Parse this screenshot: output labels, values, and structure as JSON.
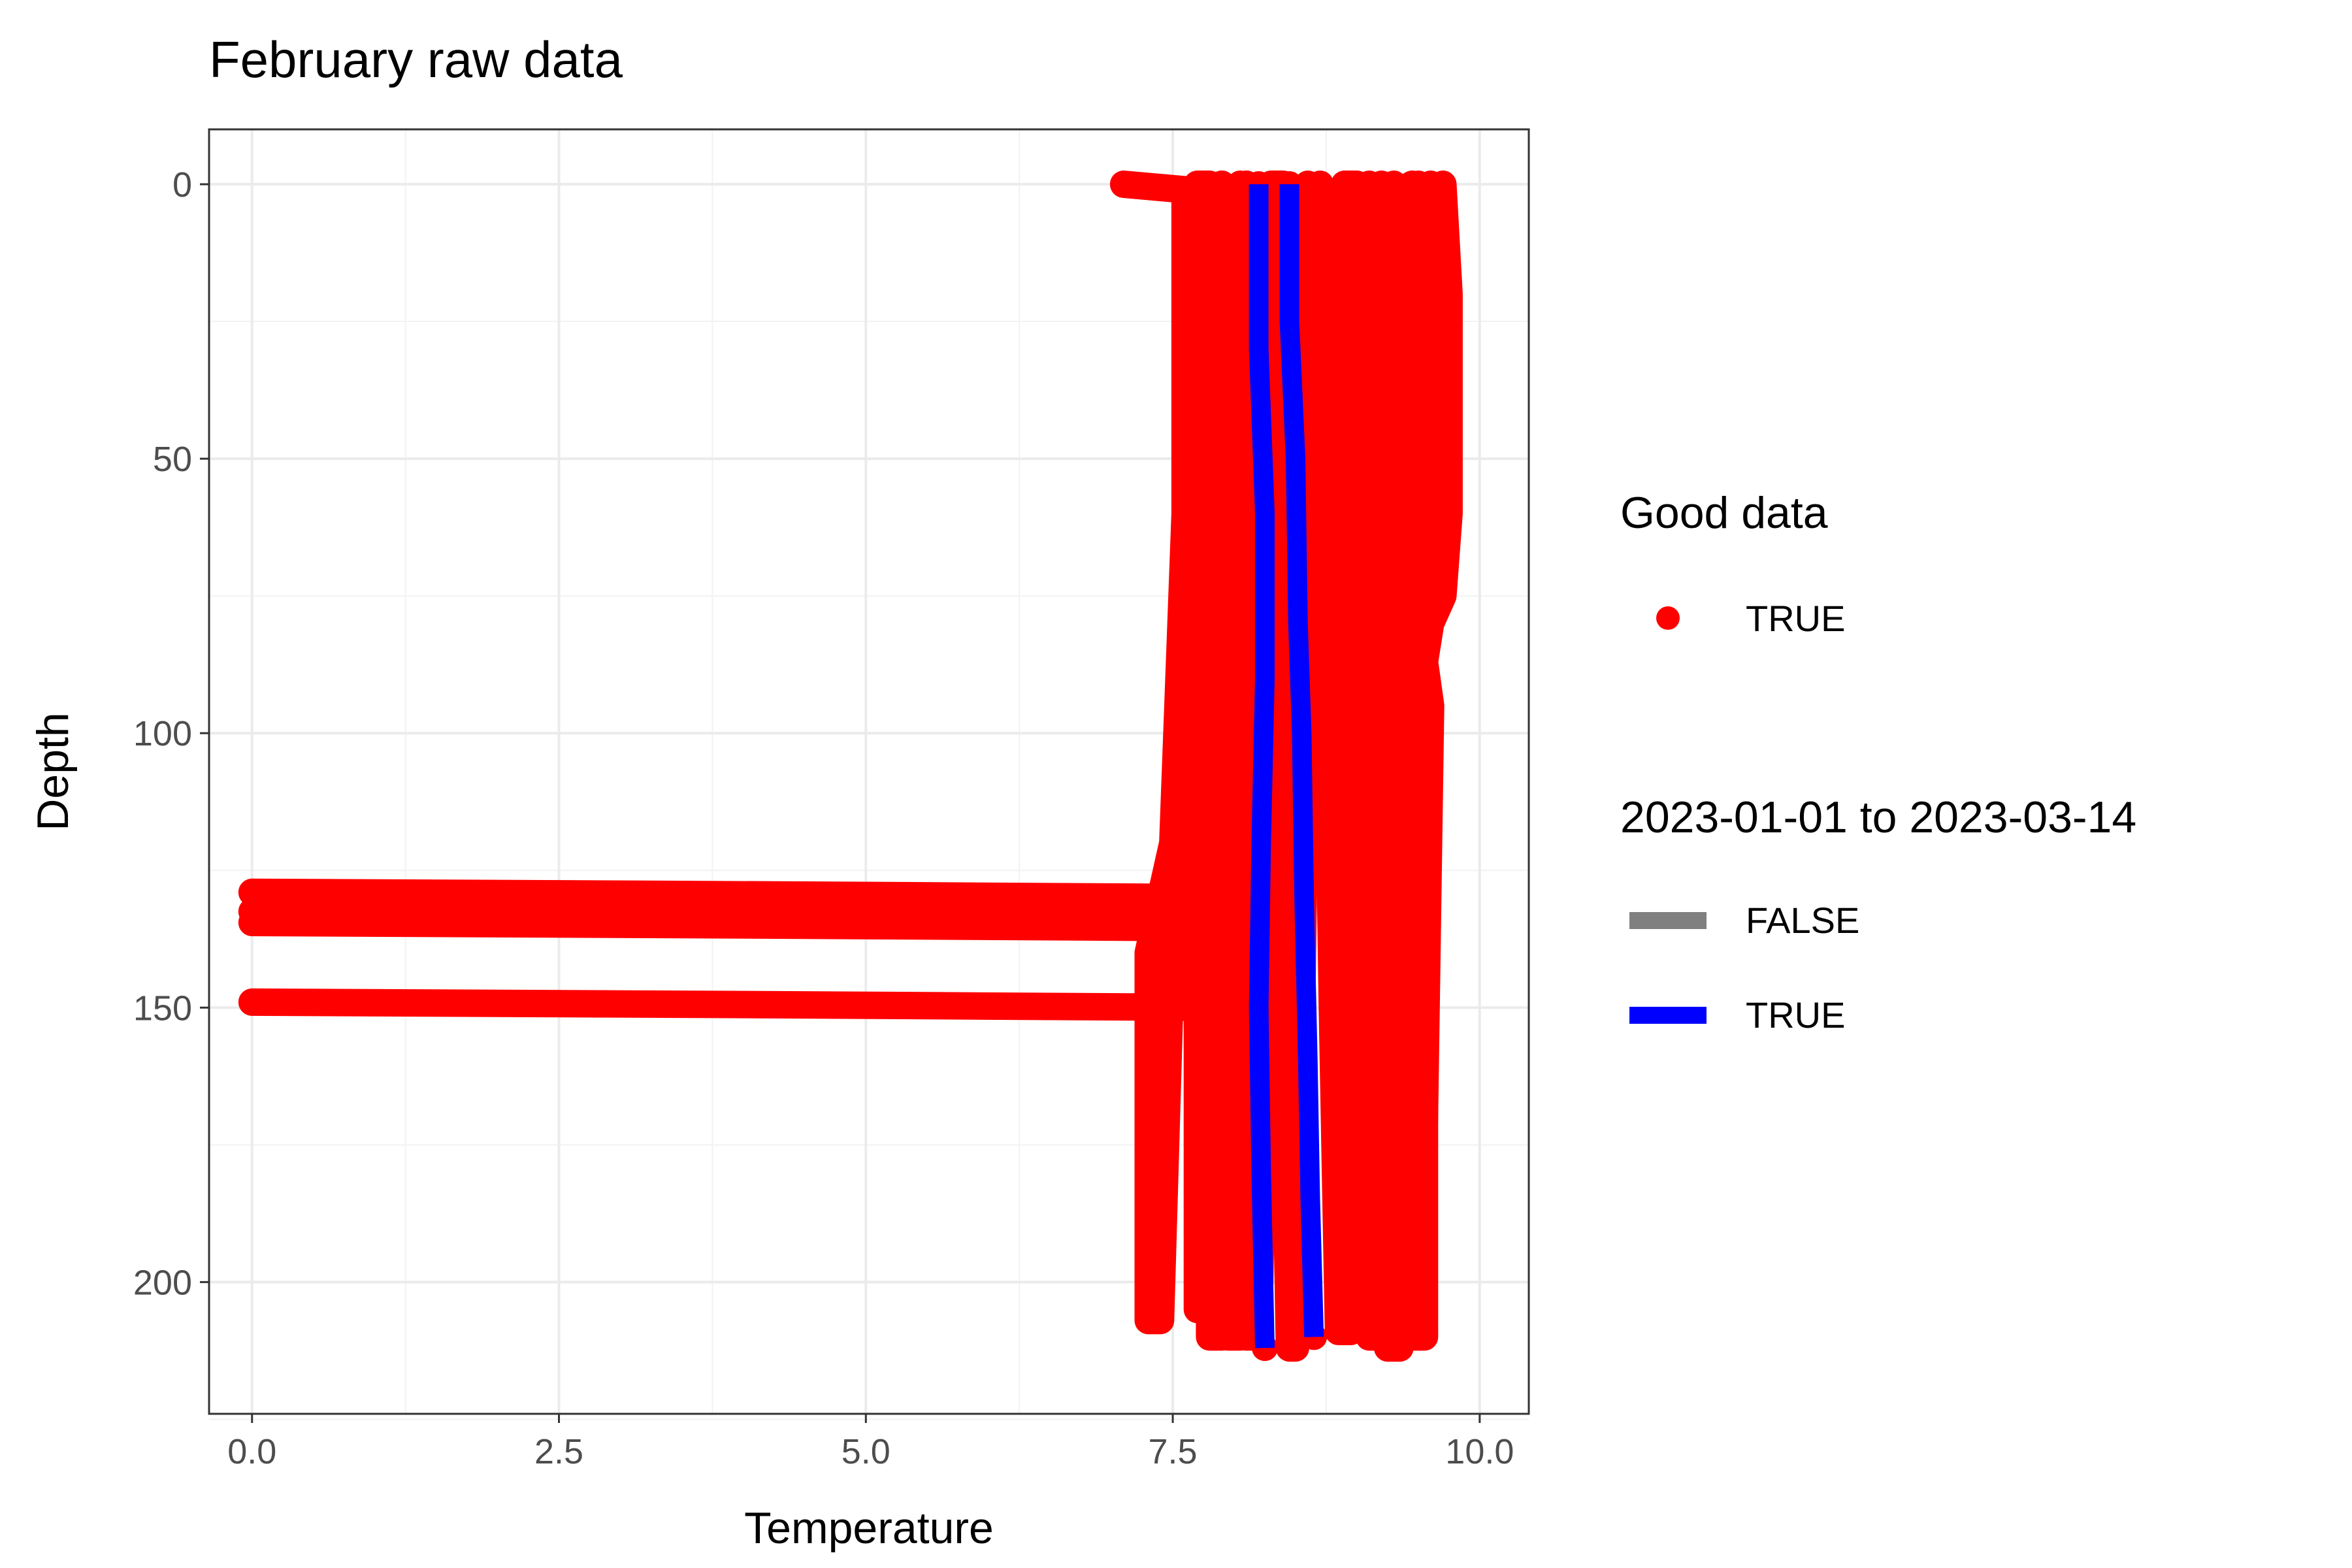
{
  "chart_data": {
    "type": "line",
    "title": "February raw data",
    "xlabel": "Temperature",
    "ylabel": "Depth",
    "xlim": [
      -0.35,
      10.4
    ],
    "ylim": [
      -10,
      224
    ],
    "y_reversed": true,
    "grid": true,
    "x_ticks": [
      0,
      2.5,
      5,
      7.5,
      10
    ],
    "x_tick_labels": [
      "0.0",
      "2.5",
      "5.0",
      "7.5",
      "10.0"
    ],
    "y_ticks": [
      0,
      50,
      100,
      150,
      200
    ],
    "y_tick_labels": [
      "0",
      "50",
      "100",
      "150",
      "200"
    ],
    "legend_placement": "right",
    "legends": [
      {
        "title": "Good data",
        "entries": [
          {
            "label": "TRUE",
            "kind": "point",
            "color": "#ff0000"
          }
        ]
      },
      {
        "title": "2023-01-01 to 2023-03-14",
        "entries": [
          {
            "label": "FALSE",
            "kind": "line",
            "color": "#808080"
          },
          {
            "label": "TRUE",
            "kind": "line",
            "color": "#0000ff"
          }
        ]
      }
    ],
    "colors": {
      "points": "#ff0000",
      "false_line": "#808080",
      "true_line": "#0000ff"
    },
    "series": [
      {
        "group": "FALSE",
        "points": [
          [
            7.1,
            0
          ],
          [
            7.6,
            1
          ],
          [
            7.6,
            60
          ],
          [
            7.5,
            120
          ],
          [
            7.3,
            140
          ],
          [
            7.3,
            207
          ],
          [
            7.4,
            207
          ],
          [
            7.5,
            130
          ],
          [
            7.6,
            120
          ],
          [
            7.7,
            60
          ],
          [
            7.7,
            0
          ],
          [
            7.8,
            0
          ],
          [
            7.8,
            70
          ],
          [
            7.7,
            130
          ],
          [
            7.7,
            150
          ],
          [
            7.7,
            205
          ],
          [
            7.8,
            205
          ],
          [
            7.8,
            130
          ],
          [
            7.8,
            70
          ],
          [
            7.9,
            0
          ]
        ]
      },
      {
        "group": "FALSE",
        "points": [
          [
            7.9,
            0
          ],
          [
            7.9,
            80
          ],
          [
            7.8,
            150
          ],
          [
            7.8,
            210
          ],
          [
            7.9,
            210
          ],
          [
            7.9,
            150
          ],
          [
            8.0,
            80
          ],
          [
            8.0,
            1
          ],
          [
            8.05,
            0
          ],
          [
            8.05,
            80
          ],
          [
            8.0,
            140
          ],
          [
            7.95,
            210
          ],
          [
            8.05,
            210
          ],
          [
            8.1,
            140
          ],
          [
            8.1,
            0
          ]
        ]
      },
      {
        "group": "FALSE",
        "points": [
          [
            8.1,
            0
          ],
          [
            8.15,
            100
          ],
          [
            8.1,
            160
          ],
          [
            8.1,
            210
          ],
          [
            8.2,
            210
          ],
          [
            8.25,
            150
          ],
          [
            8.3,
            60
          ],
          [
            8.3,
            0
          ],
          [
            8.4,
            0
          ],
          [
            8.45,
            80
          ],
          [
            8.4,
            150
          ],
          [
            8.45,
            212
          ],
          [
            8.5,
            212
          ],
          [
            8.55,
            150
          ],
          [
            8.6,
            70
          ],
          [
            8.6,
            0
          ]
        ]
      },
      {
        "group": "FALSE",
        "points": [
          [
            8.7,
            0
          ],
          [
            8.75,
            80
          ],
          [
            8.8,
            150
          ],
          [
            8.85,
            209
          ],
          [
            8.95,
            209
          ],
          [
            9.0,
            150
          ],
          [
            8.95,
            80
          ],
          [
            8.9,
            0
          ],
          [
            9.0,
            0
          ],
          [
            9.05,
            90
          ],
          [
            9.1,
            160
          ],
          [
            9.1,
            210
          ],
          [
            9.2,
            210
          ],
          [
            9.2,
            150
          ],
          [
            9.15,
            80
          ],
          [
            9.1,
            0
          ]
        ]
      },
      {
        "group": "FALSE",
        "points": [
          [
            9.2,
            0
          ],
          [
            9.25,
            70
          ],
          [
            9.3,
            150
          ],
          [
            9.25,
            212
          ],
          [
            9.35,
            212
          ],
          [
            9.4,
            150
          ],
          [
            9.35,
            70
          ],
          [
            9.3,
            2
          ],
          [
            9.45,
            0
          ],
          [
            9.45,
            80
          ],
          [
            9.5,
            150
          ],
          [
            9.45,
            210
          ],
          [
            9.55,
            210
          ],
          [
            9.55,
            150
          ],
          [
            9.55,
            90
          ],
          [
            9.5,
            0
          ]
        ]
      },
      {
        "group": "FALSE",
        "points": [
          [
            9.6,
            0
          ],
          [
            9.65,
            20
          ],
          [
            9.6,
            60
          ],
          [
            9.6,
            80
          ],
          [
            9.55,
            87
          ],
          [
            9.6,
            95
          ],
          [
            9.55,
            170
          ],
          [
            9.5,
            205
          ],
          [
            9.45,
            205
          ],
          [
            9.5,
            120
          ],
          [
            9.55,
            87
          ],
          [
            9.6,
            80
          ],
          [
            9.7,
            75
          ],
          [
            9.75,
            60
          ],
          [
            9.75,
            20
          ],
          [
            9.7,
            0
          ]
        ]
      },
      {
        "group": "FALSE",
        "points": [
          [
            8.9,
            0
          ],
          [
            8.95,
            40
          ],
          [
            9.05,
            90
          ],
          [
            9.0,
            140
          ],
          [
            8.95,
            200
          ],
          [
            9.05,
            200
          ],
          [
            9.15,
            140
          ],
          [
            9.2,
            60
          ],
          [
            9.3,
            0
          ]
        ]
      },
      {
        "group": "FALSE",
        "points": [
          [
            0,
            129
          ],
          [
            4.5,
            129.5
          ],
          [
            8.1,
            130
          ]
        ]
      },
      {
        "group": "FALSE",
        "points": [
          [
            0,
            132.5
          ],
          [
            4.5,
            133
          ],
          [
            8.1,
            133.5
          ]
        ]
      },
      {
        "group": "FALSE",
        "points": [
          [
            0,
            134.5
          ],
          [
            4.5,
            135
          ],
          [
            8.1,
            135.5
          ]
        ]
      },
      {
        "group": "FALSE",
        "points": [
          [
            0,
            149
          ],
          [
            4.5,
            149.5
          ],
          [
            8.05,
            150
          ]
        ]
      },
      {
        "group": "TRUE",
        "points": [
          [
            8.2,
            0
          ],
          [
            8.2,
            30
          ],
          [
            8.25,
            60
          ],
          [
            8.25,
            90
          ],
          [
            8.22,
            120
          ],
          [
            8.2,
            150
          ],
          [
            8.22,
            180
          ],
          [
            8.25,
            212
          ]
        ]
      },
      {
        "group": "TRUE",
        "points": [
          [
            8.45,
            0
          ],
          [
            8.45,
            25
          ],
          [
            8.5,
            50
          ],
          [
            8.52,
            80
          ],
          [
            8.55,
            100
          ],
          [
            8.57,
            130
          ],
          [
            8.6,
            160
          ],
          [
            8.62,
            185
          ],
          [
            8.65,
            210
          ]
        ]
      }
    ]
  }
}
